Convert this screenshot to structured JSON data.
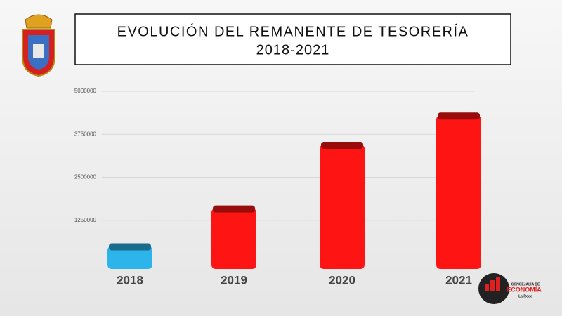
{
  "chart_data": {
    "type": "bar",
    "title": "EVOLUCIÓN DEL REMANENTE DE TESORERÍA",
    "subtitle": "2018-2021",
    "categories": [
      "2018",
      "2019",
      "2020",
      "2021"
    ],
    "values": [
      500000,
      1600000,
      3450000,
      4300000
    ],
    "colors": [
      "#2db4ea",
      "#ff1414",
      "#ff1414",
      "#ff1414"
    ],
    "ylim": [
      0,
      5000000
    ],
    "yticks": [
      1250000,
      2500000,
      3750000,
      5000000
    ],
    "grid": true
  },
  "logo": {
    "line1": "CONCEJALÍA DE",
    "line2": "ECONOMÍA",
    "line3": "La Roda"
  }
}
